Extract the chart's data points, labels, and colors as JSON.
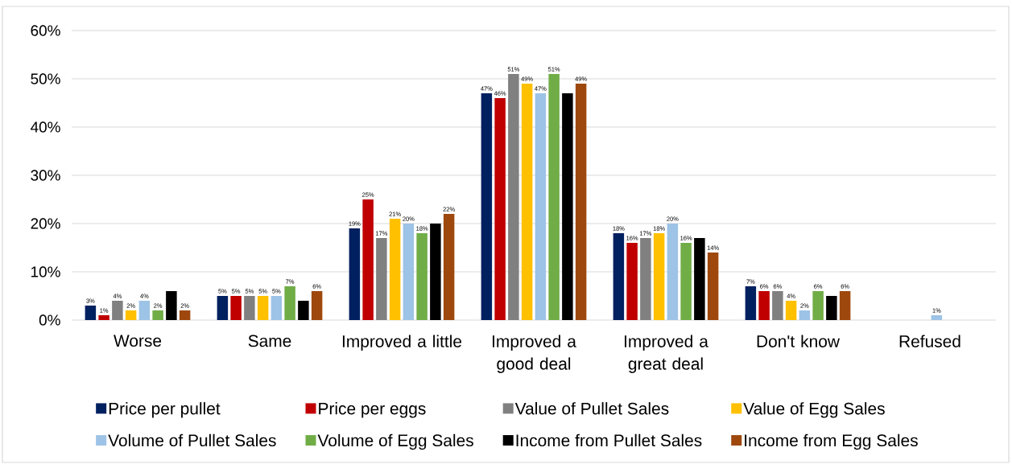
{
  "chart_data": {
    "type": "bar",
    "categories": [
      "Worse",
      "Same",
      "Improved a little",
      "Improved a good deal",
      "Improved a great deal",
      "Don't know",
      "Refused"
    ],
    "series": [
      {
        "name": "Price per pullet",
        "color": "#002060",
        "values": [
          3,
          5,
          19,
          47,
          18,
          7,
          null
        ],
        "value_labels": [
          "3%",
          "5%",
          "19%",
          "47%",
          "18%",
          "7%",
          null
        ]
      },
      {
        "name": "Price per eggs",
        "color": "#c00000",
        "values": [
          1,
          5,
          25,
          46,
          16,
          6,
          null
        ],
        "value_labels": [
          "1%",
          "5%",
          "25%",
          "46%",
          "16%",
          "6%",
          null
        ]
      },
      {
        "name": "Value of Pullet Sales",
        "color": "#808080",
        "values": [
          4,
          5,
          17,
          51,
          17,
          6,
          null
        ],
        "value_labels": [
          "4%",
          "5%",
          "17%",
          "51%",
          "17%",
          "6%",
          null
        ]
      },
      {
        "name": "Value of Egg Sales",
        "color": "#ffc000",
        "values": [
          2,
          5,
          21,
          49,
          18,
          4,
          null
        ],
        "value_labels": [
          "2%",
          "5%",
          "21%",
          "49%",
          "18%",
          "4%",
          null
        ]
      },
      {
        "name": "Volume of Pullet Sales",
        "color": "#9dc3e6",
        "values": [
          4,
          5,
          20,
          47,
          20,
          2,
          1
        ],
        "value_labels": [
          "4%",
          "5%",
          "20%",
          "47%",
          "20%",
          "2%",
          "1%"
        ]
      },
      {
        "name": "Volume of Egg Sales",
        "color": "#70ad47",
        "values": [
          2,
          7,
          18,
          51,
          16,
          6,
          null
        ],
        "value_labels": [
          "2%",
          "7%",
          "18%",
          "51%",
          "16%",
          "6%",
          null
        ]
      },
      {
        "name": "Income from Pullet Sales",
        "color": "#000000",
        "values": [
          6,
          4,
          20,
          47,
          17,
          5,
          null
        ],
        "value_labels": [
          null,
          null,
          null,
          null,
          null,
          null,
          null
        ]
      },
      {
        "name": "Income from Egg Sales",
        "color": "#9e480e",
        "values": [
          2,
          6,
          22,
          49,
          14,
          6,
          null
        ],
        "value_labels": [
          "2%",
          "6%",
          "22%",
          "49%",
          "14%",
          "6%",
          null
        ]
      }
    ],
    "ylim": [
      0,
      60
    ],
    "yticks": [
      {
        "value": 0,
        "label": "0%"
      },
      {
        "value": 10,
        "label": "10%"
      },
      {
        "value": 20,
        "label": "20%"
      },
      {
        "value": 30,
        "label": "30%"
      },
      {
        "value": 40,
        "label": "40%"
      },
      {
        "value": 50,
        "label": "50%"
      },
      {
        "value": 60,
        "label": "60%"
      }
    ],
    "grid": "y",
    "legend": "bottom"
  }
}
